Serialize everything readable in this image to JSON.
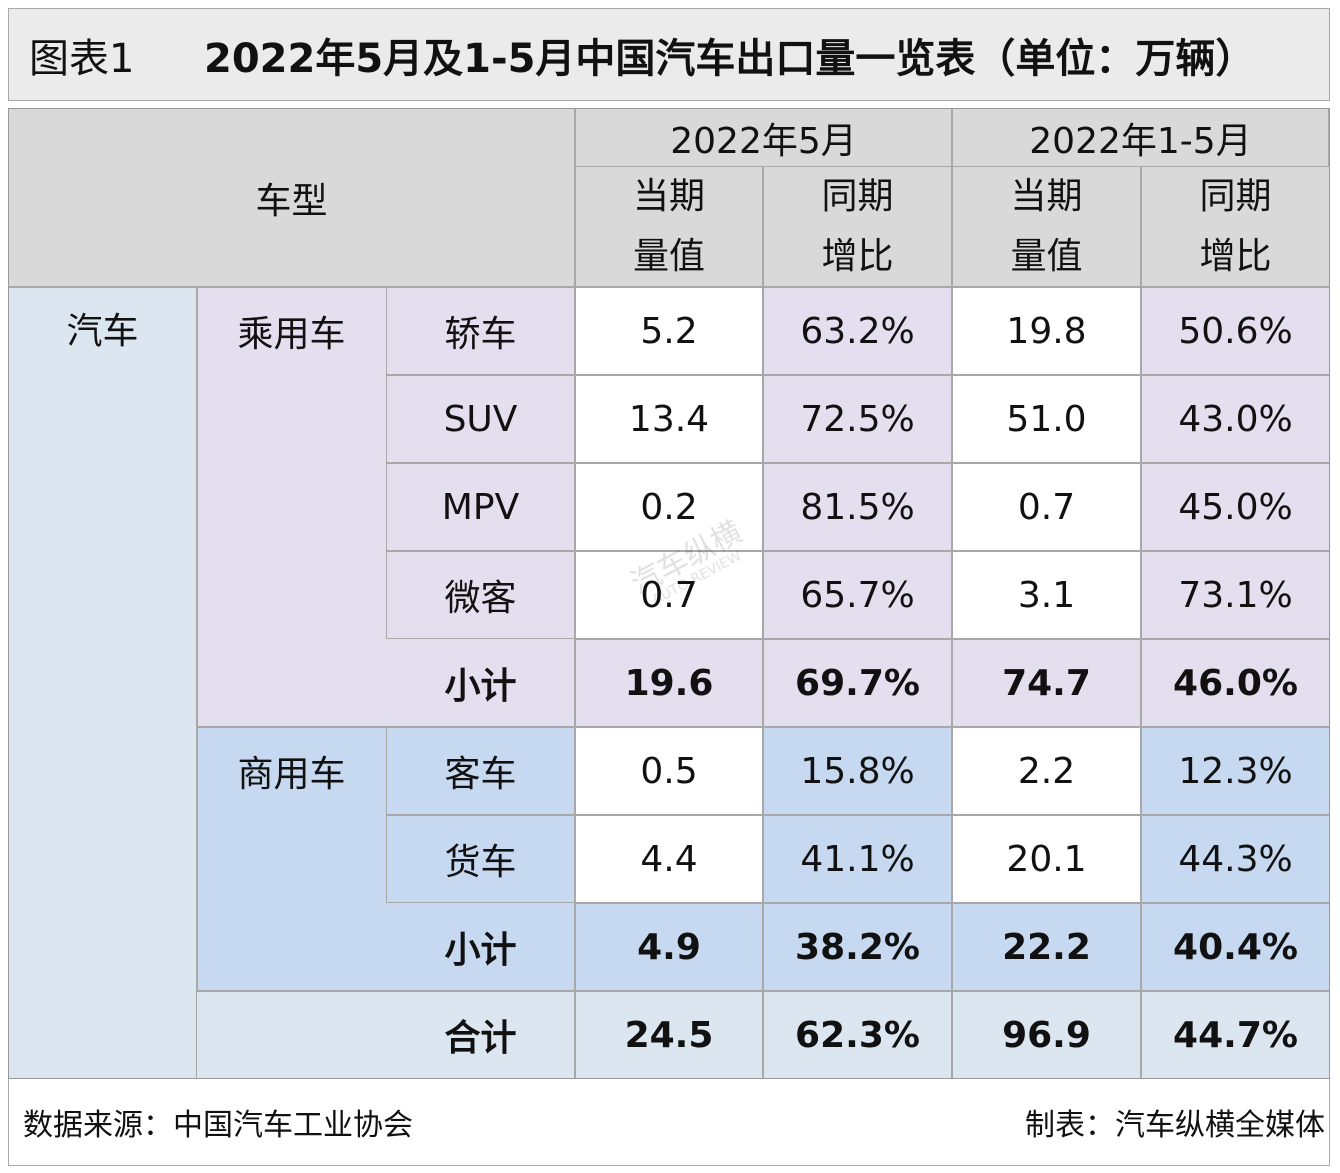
{
  "header": {
    "label": "图表1",
    "title": "2022年5月及1-5月中国汽车出口量一览表（单位：万辆）"
  },
  "table": {
    "corner": "车型",
    "periods": [
      "2022年5月",
      "2022年1-5月"
    ],
    "columns": [
      "当期量值",
      "同期增比",
      "当期量值",
      "同期增比"
    ],
    "category": "汽车",
    "groups": [
      {
        "name": "乘用车",
        "rows": [
          {
            "label": "轿车",
            "cells": [
              "5.2",
              "63.2%",
              "19.8",
              "50.6%"
            ]
          },
          {
            "label": "SUV",
            "cells": [
              "13.4",
              "72.5%",
              "51.0",
              "43.0%"
            ]
          },
          {
            "label": "MPV",
            "cells": [
              "0.2",
              "81.5%",
              "0.7",
              "45.0%"
            ]
          },
          {
            "label": "微客",
            "cells": [
              "0.7",
              "65.7%",
              "3.1",
              "73.1%"
            ]
          }
        ],
        "subtotal": {
          "label": "小计",
          "cells": [
            "19.6",
            "69.7%",
            "74.7",
            "46.0%"
          ]
        }
      },
      {
        "name": "商用车",
        "rows": [
          {
            "label": "客车",
            "cells": [
              "0.5",
              "15.8%",
              "2.2",
              "12.3%"
            ]
          },
          {
            "label": "货车",
            "cells": [
              "4.4",
              "41.1%",
              "20.1",
              "44.3%"
            ]
          }
        ],
        "subtotal": {
          "label": "小计",
          "cells": [
            "4.9",
            "38.2%",
            "22.2",
            "40.4%"
          ]
        }
      }
    ],
    "total": {
      "label": "合计",
      "cells": [
        "24.5",
        "62.3%",
        "96.9",
        "44.7%"
      ]
    }
  },
  "watermark": {
    "name": "汽车纵横",
    "english": "AUTO REVIEW"
  },
  "footer": {
    "source": "数据来源：中国汽车工业协会",
    "credit": "制表：汽车纵横全媒体"
  }
}
